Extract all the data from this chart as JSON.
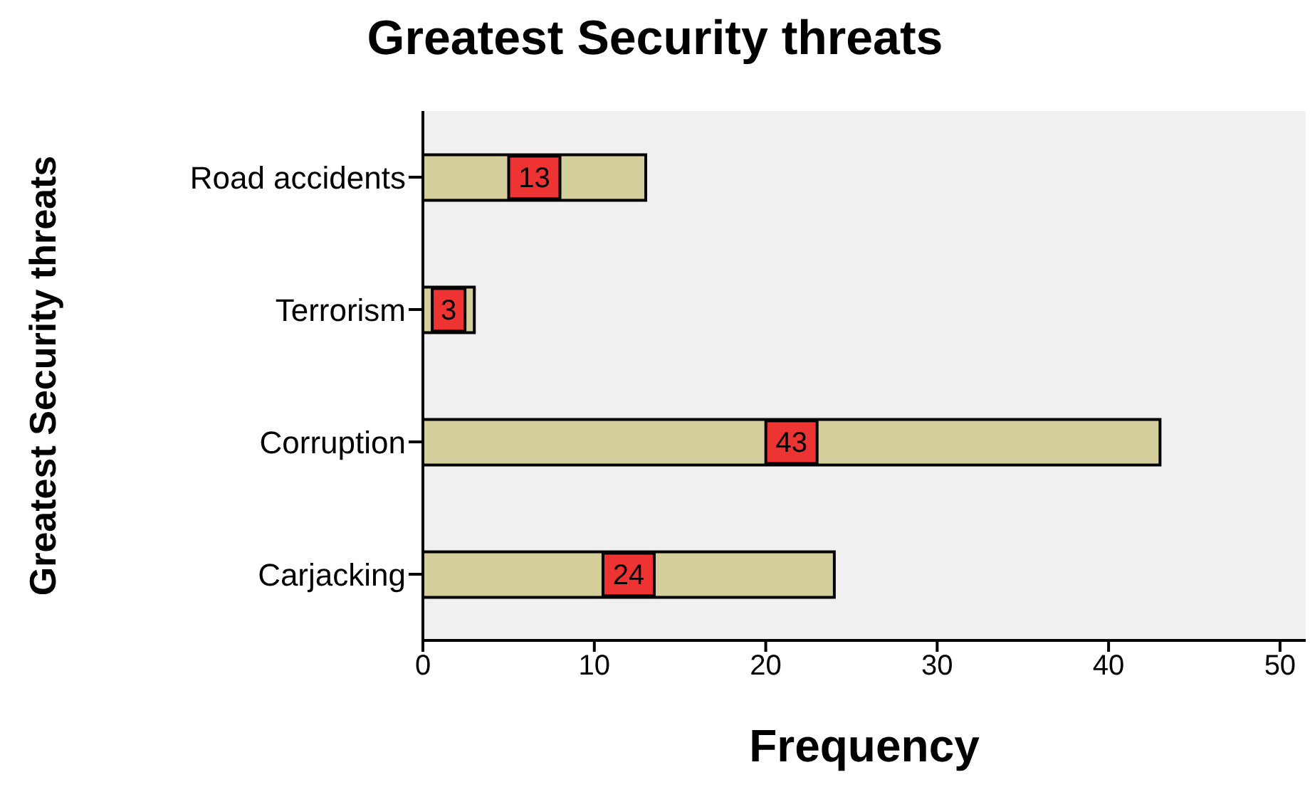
{
  "chart_data": {
    "type": "bar",
    "orientation": "horizontal",
    "title": "Greatest Security threats",
    "xlabel": "Frequency",
    "ylabel": "Greatest Security threats",
    "categories": [
      "Road accidents",
      "Terrorism",
      "Corruption",
      "Carjacking"
    ],
    "values": [
      13,
      3,
      43,
      24
    ],
    "color": "#d3ce9b",
    "data_labels": true,
    "xlim": [
      0,
      51.5
    ],
    "xticks": [
      0,
      10,
      20,
      30,
      40,
      50
    ],
    "grid": false
  }
}
